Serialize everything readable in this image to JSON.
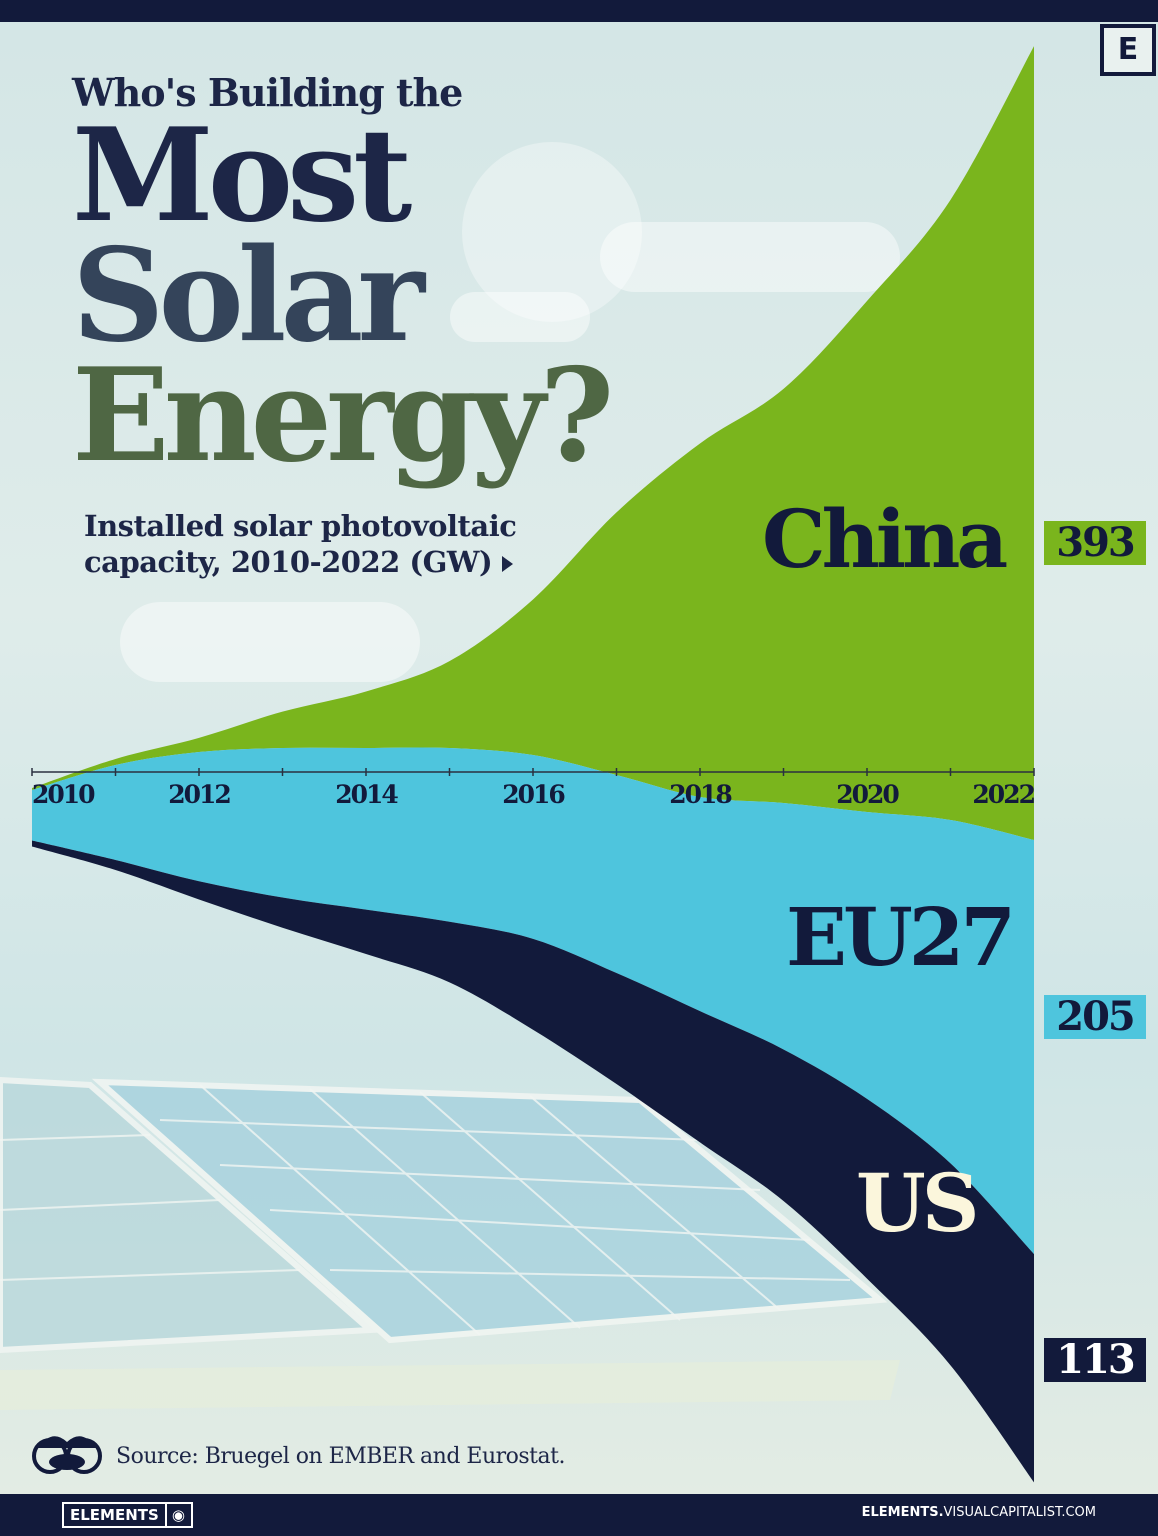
{
  "header": {
    "pretitle": "Who's Building the",
    "title_lines": [
      "Most",
      "Solar",
      "Energy?"
    ],
    "subtitle_line1": "Installed solar photovoltaic",
    "subtitle_line2": "capacity, 2010-2022 (GW)",
    "corner_logo": "E"
  },
  "colors": {
    "china": "#7ab51d",
    "eu27": "#4ec5dd",
    "us": "#121a3b",
    "background": "#dbe9e7"
  },
  "chart_data": {
    "type": "area",
    "style": "streamgraph",
    "x": [
      2010,
      2011,
      2012,
      2013,
      2014,
      2015,
      2016,
      2017,
      2018,
      2019,
      2020,
      2021,
      2022
    ],
    "tick_labels": [
      "2010",
      "2012",
      "2014",
      "2016",
      "2018",
      "2020",
      "2022"
    ],
    "series": [
      {
        "name": "China",
        "values": [
          1,
          3,
          7,
          18,
          28,
          43,
          77,
          130,
          175,
          205,
          253,
          307,
          393
        ]
      },
      {
        "name": "EU27",
        "values": [
          25,
          47,
          64,
          74,
          80,
          86,
          91,
          98,
          106,
          122,
          142,
          170,
          205
        ]
      },
      {
        "name": "US",
        "values": [
          3,
          5,
          9,
          15,
          22,
          30,
          45,
          55,
          65,
          75,
          89,
          100,
          113
        ]
      }
    ],
    "end_labels": [
      "393",
      "205",
      "113"
    ],
    "xlabel": "",
    "ylabel": "",
    "grid": false,
    "legend": "direct labels at right"
  },
  "source": "Source: Bruegel on EMBER and Eurostat.",
  "footer": {
    "brand": "ELEMENTS",
    "url_bold": "ELEMENTS.",
    "url_rest": "VISUALCAPITALIST.COM"
  }
}
